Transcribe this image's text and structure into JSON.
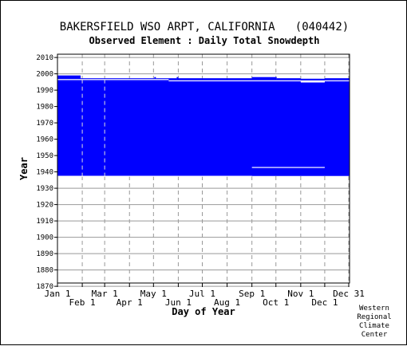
{
  "header": {
    "title": "BAKERSFIELD WSO ARPT, CALIFORNIA   (040442)",
    "subtitle": "Observed Element : Daily Total Snowdepth"
  },
  "credit": [
    "Western",
    "Regional",
    "Climate",
    "Center"
  ],
  "colors": {
    "fill": "#0000ff",
    "grid": "#999999",
    "axis": "#000000",
    "gap": "#ffffff"
  },
  "chart_data": {
    "type": "heatmap",
    "xlabel": "Day of Year",
    "ylabel": "Year",
    "xlim": [
      1,
      366
    ],
    "ylim": [
      1870,
      2012
    ],
    "x_ticks_upper": [
      {
        "label": "Jan 1",
        "day": 1
      },
      {
        "label": "Mar 1",
        "day": 60
      },
      {
        "label": "May 1",
        "day": 121
      },
      {
        "label": "Jul 1",
        "day": 182
      },
      {
        "label": "Sep 1",
        "day": 244
      },
      {
        "label": "Nov 1",
        "day": 305
      },
      {
        "label": "Dec 31",
        "day": 365
      }
    ],
    "x_ticks_lower": [
      {
        "label": "Feb 1",
        "day": 32
      },
      {
        "label": "Apr 1",
        "day": 91
      },
      {
        "label": "Jun 1",
        "day": 152
      },
      {
        "label": "Aug 1",
        "day": 213
      },
      {
        "label": "Oct 1",
        "day": 274
      },
      {
        "label": "Dec 1",
        "day": 335
      }
    ],
    "y_ticks": [
      1870,
      1880,
      1890,
      1900,
      1910,
      1920,
      1930,
      1940,
      1950,
      1960,
      1970,
      1980,
      1990,
      2000,
      2010
    ],
    "grid": true,
    "data_coverage": [
      {
        "day_start": 1,
        "day_end": 366,
        "year_start": 1937.5,
        "year_end": 1995.5
      },
      {
        "day_start": 1,
        "day_end": 366,
        "year_start": 1995.5,
        "year_end": 1996.6
      },
      {
        "day_start": 1,
        "day_end": 30,
        "year_start": 1996.6,
        "year_end": 1999.0
      },
      {
        "day_start": 30,
        "day_end": 122,
        "year_start": 1996.6,
        "year_end": 1997.3
      },
      {
        "day_start": 122,
        "day_end": 124,
        "year_start": 1996.6,
        "year_end": 1998.0
      },
      {
        "day_start": 124,
        "day_end": 150,
        "year_start": 1996.6,
        "year_end": 1997.3
      },
      {
        "day_start": 150,
        "day_end": 152,
        "year_start": 1996.6,
        "year_end": 1998.0
      },
      {
        "day_start": 152,
        "day_end": 244,
        "year_start": 1996.6,
        "year_end": 1997.3
      },
      {
        "day_start": 244,
        "day_end": 275,
        "year_start": 1996.6,
        "year_end": 1998.0
      },
      {
        "day_start": 275,
        "day_end": 305,
        "year_start": 1996.6,
        "year_end": 1997.3
      },
      {
        "day_start": 305,
        "day_end": 335,
        "year_start": 1996.6,
        "year_end": 1997.0
      },
      {
        "day_start": 335,
        "day_end": 366,
        "year_start": 1996.6,
        "year_end": 1997.3
      }
    ],
    "missing_gaps": [
      {
        "day_start": 244,
        "day_end": 335,
        "year_start": 1942.6,
        "year_end": 1943.0
      },
      {
        "day_start": 1,
        "day_end": 244,
        "year_start": 1937.5,
        "year_end": 1937.6
      },
      {
        "day_start": 305,
        "day_end": 335,
        "year_start": 1994.7,
        "year_end": 1995.5
      },
      {
        "day_start": 140,
        "day_end": 366,
        "year_start": 1995.8,
        "year_end": 1996.0
      },
      {
        "day_start": 1,
        "day_end": 140,
        "year_start": 1996.6,
        "year_end": 1996.8
      }
    ]
  }
}
